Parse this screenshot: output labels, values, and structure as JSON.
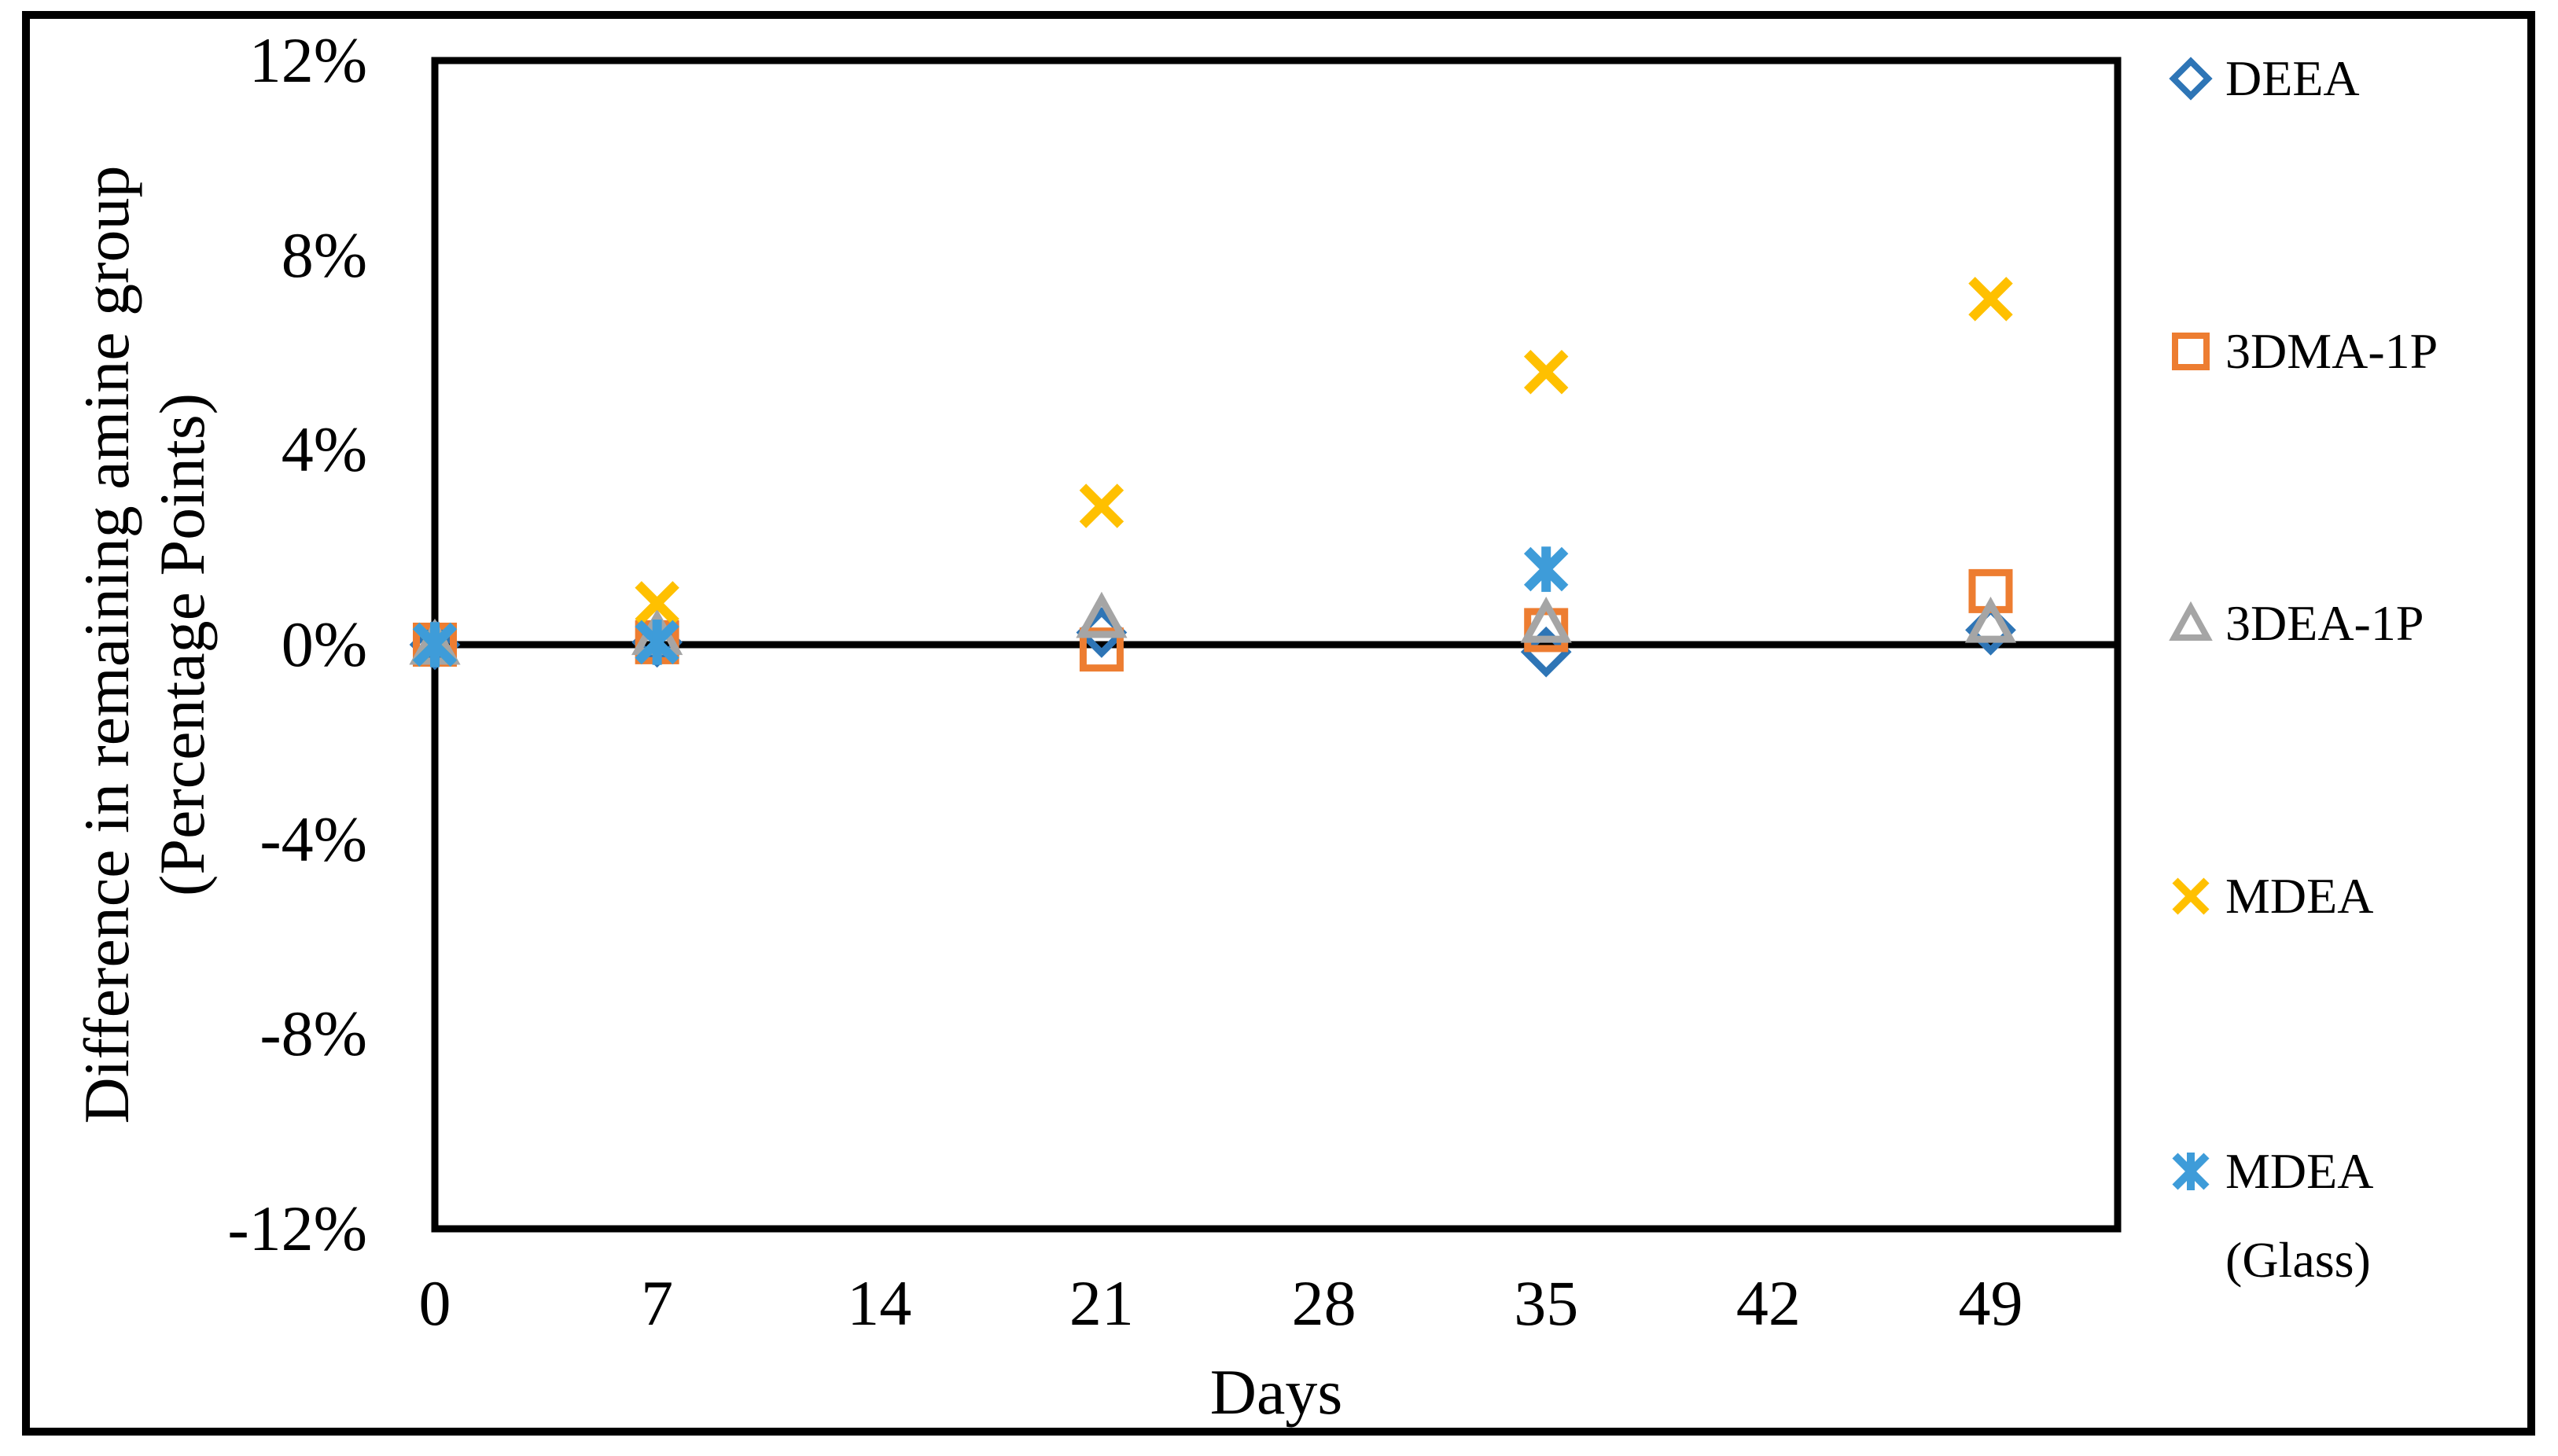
{
  "figure": {
    "background": "#ffffff",
    "border_color": "#000000",
    "axis_color": "#000000"
  },
  "chart_data": {
    "type": "scatter",
    "title": "",
    "xlabel": "Days",
    "ylabel_line1": "Difference in remaining amine group",
    "ylabel_line2": "(Percentage Points)",
    "xlim": [
      0,
      53
    ],
    "ylim": [
      -12,
      12
    ],
    "grid": false,
    "zero_line": true,
    "legend_position": "right-outside",
    "x_ticks": [
      0,
      7,
      14,
      21,
      28,
      35,
      42,
      49
    ],
    "x_tick_labels": [
      "0",
      "7",
      "14",
      "21",
      "28",
      "35",
      "42",
      "49"
    ],
    "y_ticks": [
      12,
      8,
      4,
      0,
      -4,
      -8,
      -12
    ],
    "y_tick_labels": [
      "12%",
      "8%",
      "4%",
      "0%",
      "-4%",
      "-8%",
      "-12%"
    ],
    "y_units": "percentage points",
    "series": [
      {
        "name": "DEEA",
        "marker": "diamond",
        "color": "#2E75B6",
        "points": [
          [
            0,
            0.0
          ],
          [
            7,
            0.05
          ],
          [
            21,
            0.25
          ],
          [
            35,
            -0.15
          ],
          [
            49,
            0.3
          ]
        ]
      },
      {
        "name": "3DMA-1P",
        "marker": "square",
        "color": "#ED7D31",
        "points": [
          [
            0,
            0.0
          ],
          [
            7,
            0.05
          ],
          [
            21,
            -0.1
          ],
          [
            35,
            0.3
          ],
          [
            49,
            1.1
          ]
        ]
      },
      {
        "name": "3DEA-1P",
        "marker": "triangle",
        "color": "#A5A5A5",
        "points": [
          [
            0,
            0.0
          ],
          [
            7,
            0.2
          ],
          [
            21,
            0.55
          ],
          [
            35,
            0.45
          ],
          [
            49,
            0.45
          ]
        ]
      },
      {
        "name": "MDEA",
        "marker": "x",
        "color": "#FFC000",
        "points": [
          [
            0,
            0.0
          ],
          [
            7,
            0.85
          ],
          [
            21,
            2.85
          ],
          [
            35,
            5.6
          ],
          [
            49,
            7.1
          ]
        ]
      },
      {
        "name": "MDEA (Glass)",
        "marker": "asterisk",
        "color": "#3E9CD9",
        "legend_lines": [
          "MDEA",
          "(Glass)"
        ],
        "points": [
          [
            0,
            0.0
          ],
          [
            7,
            0.05
          ],
          [
            35,
            1.55
          ]
        ]
      }
    ]
  }
}
